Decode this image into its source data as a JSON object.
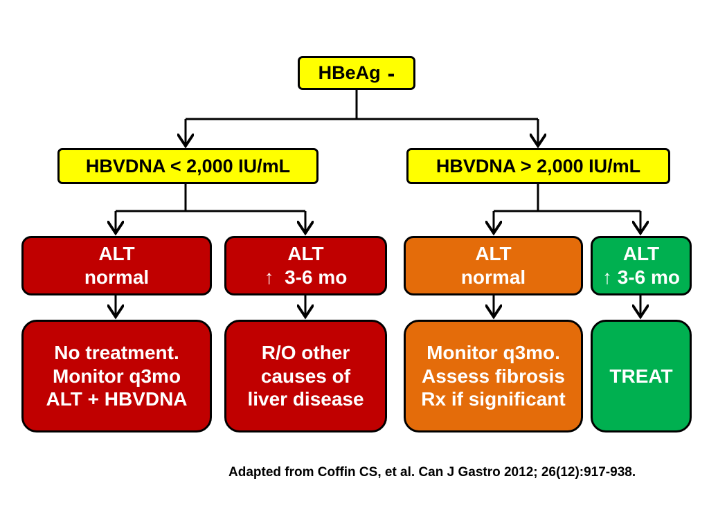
{
  "root": {
    "label": "HBeAg",
    "sign": "-"
  },
  "branches": [
    {
      "label": "HBVDNA < 2,000 IU/mL",
      "children": [
        {
          "condition": [
            "ALT",
            "normal"
          ],
          "outcome": [
            "No treatment.",
            "Monitor q3mo",
            "ALT + HBVDNA"
          ],
          "color": "#c00000"
        },
        {
          "condition": [
            "ALT",
            "↑  3-6 mo"
          ],
          "outcome": [
            "R/O other",
            "causes of",
            "liver disease"
          ],
          "color": "#c00000"
        }
      ]
    },
    {
      "label": "HBVDNA > 2,000 IU/mL",
      "children": [
        {
          "condition": [
            "ALT",
            "normal"
          ],
          "outcome": [
            "Monitor q3mo.",
            "Assess fibrosis",
            "Rx if significant"
          ],
          "color": "#e46c0a"
        },
        {
          "condition": [
            "ALT",
            "↑ 3-6 mo"
          ],
          "outcome": [
            "TREAT"
          ],
          "color": "#00b050"
        }
      ]
    }
  ],
  "citation": "Adapted from Coffin CS, et al. Can J Gastro 2012; 26(12):917-938."
}
